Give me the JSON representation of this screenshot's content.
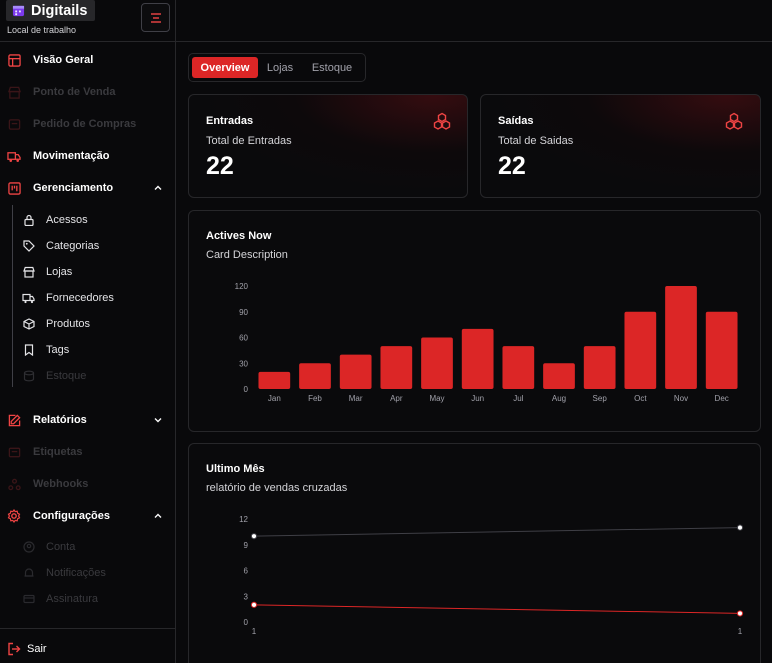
{
  "brand": {
    "name": "Digitails",
    "workspace": "Local de trabalho"
  },
  "sidebar": {
    "items": [
      {
        "label": "Visão Geral",
        "icon": "layout-icon",
        "active": true
      },
      {
        "label": "Ponto de Venda",
        "icon": "store-icon",
        "active": false
      },
      {
        "label": "Pedido de Compras",
        "icon": "cart-icon",
        "active": false
      },
      {
        "label": "Movimentação",
        "icon": "truck-icon",
        "active": true
      },
      {
        "label": "Gerenciamento",
        "icon": "kanban-icon",
        "active": true,
        "expanded": true
      }
    ],
    "management_sub": [
      {
        "label": "Acessos",
        "icon": "lock-icon",
        "active": true
      },
      {
        "label": "Categorias",
        "icon": "tags-icon",
        "active": true
      },
      {
        "label": "Lojas",
        "icon": "store-icon",
        "active": true
      },
      {
        "label": "Fornecedores",
        "icon": "truck-icon",
        "active": true
      },
      {
        "label": "Produtos",
        "icon": "package-icon",
        "active": true
      },
      {
        "label": "Tags",
        "icon": "bookmark-icon",
        "active": true
      },
      {
        "label": "Estoque",
        "icon": "database-icon",
        "active": false
      }
    ],
    "items2": [
      {
        "label": "Relatórios",
        "icon": "report-icon",
        "active": true,
        "expanded": false
      },
      {
        "label": "Etiquetas",
        "icon": "tag-icon",
        "active": false
      },
      {
        "label": "Webhooks",
        "icon": "webhook-icon",
        "active": false
      },
      {
        "label": "Configurações",
        "icon": "gear-icon",
        "active": true,
        "expanded": true
      }
    ],
    "settings_sub": [
      {
        "label": "Conta",
        "icon": "user-icon",
        "active": false
      },
      {
        "label": "Notificações",
        "icon": "bell-icon",
        "active": false
      },
      {
        "label": "Assinatura",
        "icon": "credit-card-icon",
        "active": false
      }
    ],
    "logout_label": "Sair"
  },
  "tabs": [
    {
      "label": "Overview",
      "active": true
    },
    {
      "label": "Lojas",
      "active": false
    },
    {
      "label": "Estoque",
      "active": false
    }
  ],
  "stats": {
    "entradas": {
      "title": "Entradas",
      "subtitle": "Total de Entradas",
      "value": "22"
    },
    "saidas": {
      "title": "Saídas",
      "subtitle": "Total de Saidas",
      "value": "22"
    }
  },
  "actives_card": {
    "title": "Actives Now",
    "subtitle": "Card Description"
  },
  "last_month_card": {
    "title": "Ultimo Mês",
    "subtitle": "relatório de vendas cruzadas"
  },
  "colors": {
    "accent": "#dc2626",
    "background": "#09090b",
    "border": "#27272a"
  },
  "chart_data": [
    {
      "type": "bar",
      "categories": [
        "Jan",
        "Feb",
        "Mar",
        "Apr",
        "May",
        "Jun",
        "Jul",
        "Aug",
        "Sep",
        "Oct",
        "Nov",
        "Dec"
      ],
      "values": [
        20,
        30,
        40,
        50,
        60,
        70,
        50,
        30,
        50,
        90,
        120,
        90
      ],
      "ylim": [
        0,
        120
      ],
      "yticks": [
        0,
        30,
        60,
        90,
        120
      ],
      "color": "#dc2626",
      "grid": false
    },
    {
      "type": "line",
      "x": [
        "1",
        "1"
      ],
      "series": [
        {
          "values": [
            10,
            11
          ],
          "color": "#3f3f46"
        },
        {
          "values": [
            2,
            1
          ],
          "color": "#dc2626"
        }
      ],
      "ylim": [
        0,
        12
      ],
      "yticks": [
        0,
        3,
        6,
        9,
        12
      ],
      "grid": false
    }
  ]
}
